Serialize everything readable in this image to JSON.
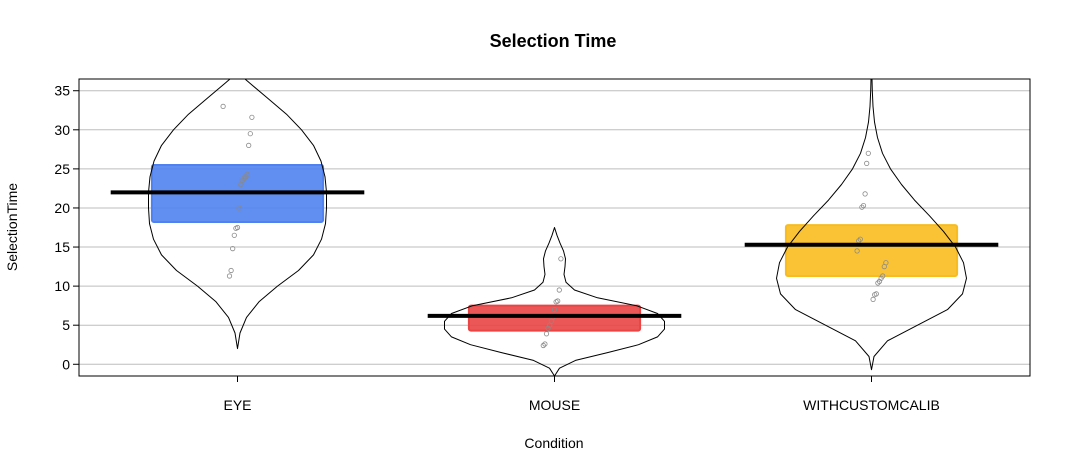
{
  "chart_data": {
    "type": "pirateplot",
    "title": "Selection Time",
    "xlabel": "Condition",
    "ylabel": "SelectionTime",
    "ylim": [
      -1.5,
      36.5
    ],
    "yticks": [
      0,
      5,
      10,
      15,
      20,
      25,
      30,
      35
    ],
    "grid": true,
    "categories": [
      "EYE",
      "MOUSE",
      "WITHCUSTOMCALIB"
    ],
    "colors": [
      "#4f82f0",
      "#e94545",
      "#f8bc1f"
    ],
    "groups": [
      {
        "name": "EYE",
        "mean": 22.0,
        "hdi": [
          18.2,
          25.5
        ],
        "points": [
          33.0,
          31.6,
          29.5,
          28.0,
          24.3,
          24.0,
          23.8,
          23.5,
          23.0,
          20.0,
          17.5,
          17.4,
          16.5,
          14.8,
          12.0,
          11.3
        ],
        "density": [
          [
            2.0,
            0.0
          ],
          [
            4.0,
            2.5
          ],
          [
            6.0,
            9.0
          ],
          [
            8.0,
            21.5
          ],
          [
            10.0,
            40.0
          ],
          [
            12.0,
            61.0
          ],
          [
            14.0,
            76.0
          ],
          [
            16.0,
            84.0
          ],
          [
            18.0,
            88.0
          ],
          [
            20.0,
            89.0
          ],
          [
            22.0,
            89.0
          ],
          [
            24.0,
            87.5
          ],
          [
            26.0,
            83.5
          ],
          [
            28.0,
            76.0
          ],
          [
            30.0,
            64.0
          ],
          [
            32.0,
            49.0
          ],
          [
            34.0,
            30.5
          ],
          [
            36.0,
            12.0
          ],
          [
            36.5,
            7.5
          ]
        ]
      },
      {
        "name": "MOUSE",
        "mean": 6.2,
        "hdi": [
          4.3,
          7.5
        ],
        "points": [
          13.5,
          9.5,
          8.1,
          8.0,
          7.0,
          6.0,
          5.5,
          5.0,
          4.6,
          3.9,
          2.6,
          2.4
        ],
        "density": [
          [
            -1.5,
            0.0
          ],
          [
            -0.5,
            5.0
          ],
          [
            0.5,
            21.0
          ],
          [
            1.5,
            53.0
          ],
          [
            2.5,
            84.0
          ],
          [
            3.5,
            103.0
          ],
          [
            4.5,
            110.0
          ],
          [
            5.5,
            110.0
          ],
          [
            6.5,
            103.0
          ],
          [
            7.5,
            82.0
          ],
          [
            8.5,
            43.0
          ],
          [
            9.5,
            20.0
          ],
          [
            10.5,
            11.5
          ],
          [
            11.5,
            9.5
          ],
          [
            12.5,
            10.5
          ],
          [
            13.5,
            11.0
          ],
          [
            14.5,
            9.0
          ],
          [
            15.5,
            5.5
          ],
          [
            16.5,
            2.5
          ],
          [
            17.5,
            0.0
          ]
        ]
      },
      {
        "name": "WITHCUSTOMCALIB",
        "mean": 15.3,
        "hdi": [
          11.3,
          17.8
        ],
        "points": [
          27.0,
          25.7,
          21.8,
          20.3,
          20.1,
          16.0,
          15.8,
          14.5,
          13.0,
          12.5,
          11.3,
          11.0,
          10.6,
          10.4,
          9.0,
          8.9,
          8.3
        ],
        "density": [
          [
            -0.7,
            0.0
          ],
          [
            1.0,
            2.5
          ],
          [
            3.0,
            16.0
          ],
          [
            5.0,
            46.0
          ],
          [
            7.0,
            76.0
          ],
          [
            9.0,
            91.0
          ],
          [
            11.0,
            95.0
          ],
          [
            13.0,
            92.0
          ],
          [
            15.0,
            84.0
          ],
          [
            17.0,
            72.0
          ],
          [
            19.0,
            58.0
          ],
          [
            21.0,
            43.0
          ],
          [
            23.0,
            30.0
          ],
          [
            25.0,
            19.0
          ],
          [
            27.0,
            11.0
          ],
          [
            29.0,
            6.0
          ],
          [
            31.0,
            3.0
          ],
          [
            33.0,
            1.5
          ],
          [
            35.0,
            0.8
          ],
          [
            36.5,
            0.5
          ]
        ]
      }
    ]
  }
}
